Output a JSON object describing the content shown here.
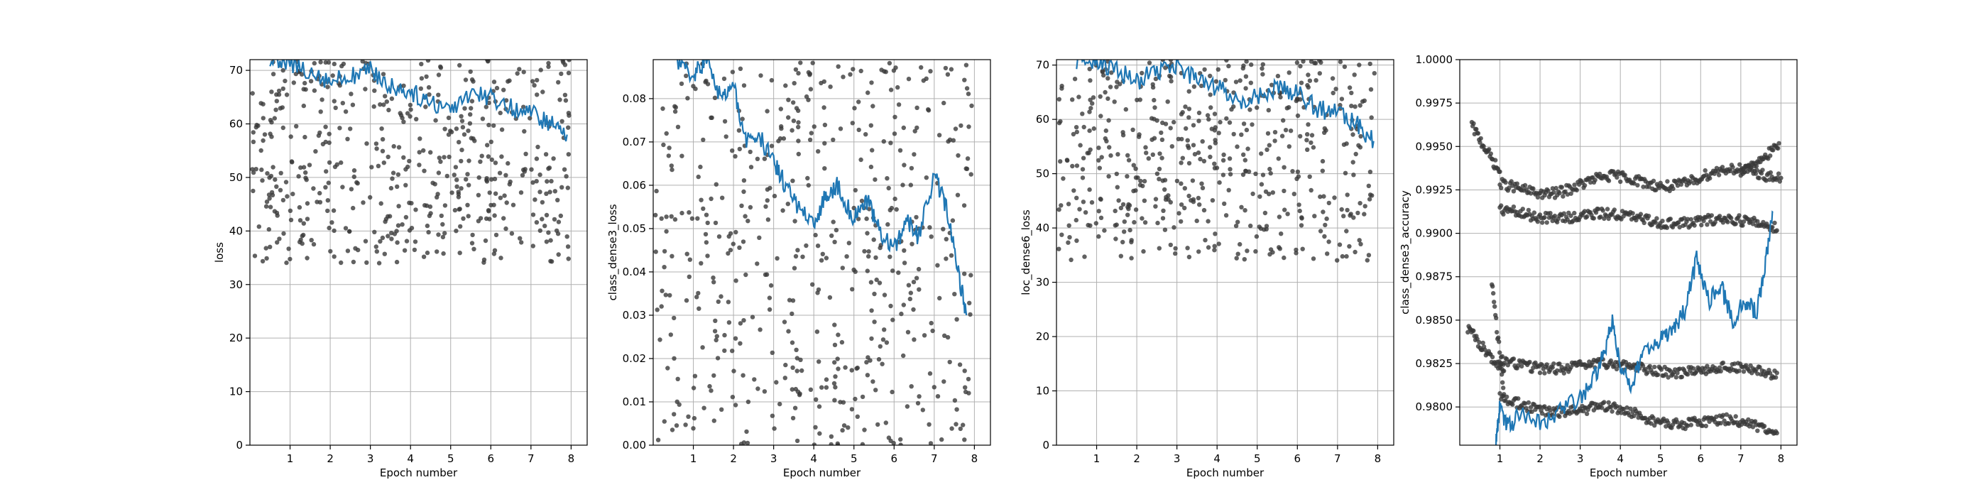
{
  "chart_data": [
    {
      "type": "scatter",
      "xlabel": "Epoch number",
      "ylabel": "loss",
      "xlim": [
        0,
        8.4
      ],
      "ylim": [
        0,
        72
      ],
      "xticks": [
        1,
        2,
        3,
        4,
        5,
        6,
        7,
        8
      ],
      "yticks": [
        0,
        10,
        20,
        30,
        40,
        50,
        60,
        70
      ],
      "ytick_labels": [
        "0",
        "10",
        "20",
        "30",
        "40",
        "50",
        "60",
        "70"
      ],
      "grid": true,
      "scatter": {
        "count": 520,
        "y_min": 34,
        "y_max": 72
      },
      "series_line": {
        "x": [
          0.5,
          1,
          1.5,
          2,
          2.5,
          3,
          3.5,
          4,
          4.5,
          5,
          5.5,
          6,
          6.5,
          7,
          7.5,
          7.9
        ],
        "y": [
          72,
          71,
          70,
          68,
          69,
          70,
          67,
          66,
          64,
          63,
          66,
          65,
          63,
          62,
          60,
          58
        ]
      }
    },
    {
      "type": "scatter",
      "xlabel": "Epoch number",
      "ylabel": "class_dense3_loss",
      "xlim": [
        0,
        8.4
      ],
      "ylim": [
        0,
        0.089
      ],
      "xticks": [
        1,
        2,
        3,
        4,
        5,
        6,
        7,
        8
      ],
      "yticks": [
        0,
        0.01,
        0.02,
        0.03,
        0.04,
        0.05,
        0.06,
        0.07,
        0.08
      ],
      "ytick_labels": [
        "0.00",
        "0.01",
        "0.02",
        "0.03",
        "0.04",
        "0.05",
        "0.06",
        "0.07",
        "0.08"
      ],
      "grid": true,
      "scatter": {
        "count": 520,
        "y_min": 0,
        "y_max": 0.089
      },
      "series_line": {
        "x": [
          0.6,
          1,
          1.3,
          1.7,
          2,
          2.3,
          2.6,
          3,
          3.3,
          3.6,
          4,
          4.3,
          4.6,
          5,
          5.3,
          5.6,
          6,
          6.3,
          6.6,
          7,
          7.3,
          7.6,
          7.8
        ],
        "y": [
          0.089,
          0.085,
          0.089,
          0.08,
          0.083,
          0.07,
          0.072,
          0.065,
          0.06,
          0.055,
          0.05,
          0.058,
          0.06,
          0.052,
          0.057,
          0.05,
          0.045,
          0.052,
          0.048,
          0.062,
          0.055,
          0.04,
          0.03
        ]
      }
    },
    {
      "type": "scatter",
      "xlabel": "Epoch number",
      "ylabel": "loc_dense6_loss",
      "xlim": [
        0,
        8.4
      ],
      "ylim": [
        0,
        71
      ],
      "xticks": [
        1,
        2,
        3,
        4,
        5,
        6,
        7,
        8
      ],
      "yticks": [
        0,
        10,
        20,
        30,
        40,
        50,
        60,
        70
      ],
      "ytick_labels": [
        "0",
        "10",
        "20",
        "30",
        "40",
        "50",
        "60",
        "70"
      ],
      "grid": true,
      "scatter": {
        "count": 520,
        "y_min": 34,
        "y_max": 71
      },
      "series_line": {
        "x": [
          0.5,
          1,
          1.5,
          2,
          2.5,
          3,
          3.5,
          4,
          4.5,
          5,
          5.5,
          6,
          6.5,
          7,
          7.5,
          7.9
        ],
        "y": [
          71,
          71,
          69,
          67,
          69,
          70,
          67,
          66,
          63,
          64,
          66,
          65,
          62,
          61,
          59,
          56
        ]
      }
    },
    {
      "type": "scatter",
      "xlabel": "Epoch number",
      "ylabel": "class_dense3_accuracy",
      "xlim": [
        0,
        8.4
      ],
      "ylim": [
        0.9778,
        1.0
      ],
      "xticks": [
        1,
        2,
        3,
        4,
        5,
        6,
        7,
        8
      ],
      "yticks": [
        0.98,
        0.9825,
        0.985,
        0.9875,
        0.99,
        0.9925,
        0.995,
        0.9975,
        1.0
      ],
      "ytick_labels": [
        "0.9800",
        "0.9825",
        "0.9850",
        "0.9875",
        "0.9900",
        "0.9925",
        "0.9950",
        "0.9975",
        "1.0000"
      ],
      "grid": true,
      "series_line": {
        "x": [
          0.9,
          1,
          1.2,
          1.5,
          2,
          2.5,
          3,
          3.3,
          3.6,
          3.8,
          4,
          4.3,
          4.6,
          5,
          5.3,
          5.6,
          5.9,
          6.2,
          6.5,
          6.8,
          7.1,
          7.4,
          7.6,
          7.8
        ],
        "y": [
          0.9778,
          0.98,
          0.9788,
          0.9795,
          0.979,
          0.9798,
          0.9805,
          0.9815,
          0.983,
          0.985,
          0.9825,
          0.9812,
          0.9835,
          0.9838,
          0.9845,
          0.9855,
          0.9885,
          0.986,
          0.987,
          0.985,
          0.986,
          0.9855,
          0.988,
          0.9912
        ]
      }
    }
  ]
}
